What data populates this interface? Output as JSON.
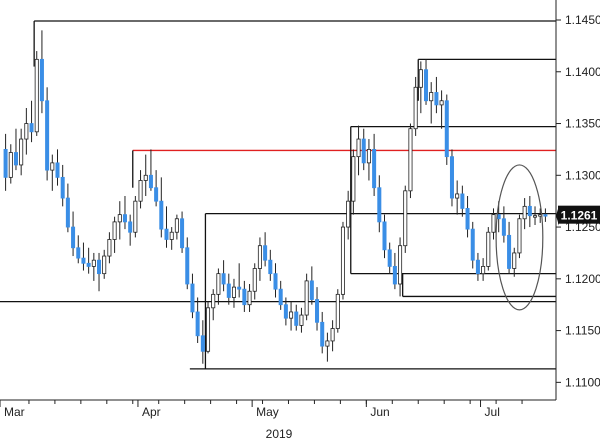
{
  "chart_data": {
    "type": "candlestick",
    "instrument_note": "",
    "y_axis": {
      "ticks": [
        "1.1450",
        "1.1400",
        "1.1350",
        "1.1300",
        "1.1250",
        "1.1200",
        "1.1150",
        "1.1100"
      ],
      "tick_values": [
        1.145,
        1.14,
        1.135,
        1.13,
        1.125,
        1.12,
        1.115,
        1.11
      ],
      "range": [
        1.1075,
        1.1485
      ],
      "position": "right"
    },
    "x_axis": {
      "month_labels": [
        "Mar",
        "Apr",
        "May",
        "Jun",
        "Jul"
      ],
      "month_start_index": [
        0,
        26,
        48,
        70,
        92
      ],
      "year_label": "2019",
      "num_bars": 105
    },
    "current_price": "1.1261",
    "current_price_value": 1.1261,
    "colors": {
      "up": "#ffffff",
      "down": "#3a8ee6",
      "wick": "#222222",
      "level": "#111111",
      "resistance": "#e02020",
      "price_box": "#111111"
    },
    "horizontal_levels": [
      {
        "value": 1.1449,
        "start_index": 6,
        "end_index": 104,
        "color": "#111111"
      },
      {
        "value": 1.1412,
        "start_index": 80,
        "end_index": 104,
        "color": "#111111"
      },
      {
        "value": 1.1347,
        "start_index": 67,
        "end_index": 104,
        "color": "#111111"
      },
      {
        "value": 1.1324,
        "start_index": 25,
        "end_index": 104,
        "color": "#e02020"
      },
      {
        "value": 1.1263,
        "start_index": 39,
        "end_index": 104,
        "color": "#111111"
      },
      {
        "value": 1.1205,
        "start_index": 67,
        "end_index": 104,
        "color": "#111111"
      },
      {
        "value": 1.1183,
        "start_index": 77,
        "end_index": 104,
        "color": "#111111"
      },
      {
        "value": 1.1178,
        "start_index": 0,
        "end_index": 104,
        "color": "#111111"
      },
      {
        "value": 1.1113,
        "start_index": 36,
        "end_index": 104,
        "color": "#111111"
      }
    ],
    "annotation": {
      "type": "ellipse",
      "center_index": 99,
      "center_value": 1.124,
      "half_width_bars": 4.5,
      "half_height_value": 0.007
    },
    "ohlc": [
      [
        1.1325,
        1.134,
        1.1285,
        1.1298
      ],
      [
        1.1298,
        1.133,
        1.1292,
        1.1322
      ],
      [
        1.1322,
        1.1345,
        1.1305,
        1.131
      ],
      [
        1.131,
        1.1345,
        1.13,
        1.1335
      ],
      [
        1.1335,
        1.1365,
        1.132,
        1.135
      ],
      [
        1.135,
        1.1372,
        1.1332,
        1.1342
      ],
      [
        1.1342,
        1.142,
        1.1338,
        1.1412
      ],
      [
        1.1412,
        1.144,
        1.136,
        1.1372
      ],
      [
        1.1372,
        1.1385,
        1.1295,
        1.1305
      ],
      [
        1.1305,
        1.132,
        1.1285,
        1.1312
      ],
      [
        1.1312,
        1.1325,
        1.129,
        1.1298
      ],
      [
        1.1298,
        1.131,
        1.127,
        1.1278
      ],
      [
        1.1278,
        1.1292,
        1.1245,
        1.125
      ],
      [
        1.125,
        1.1265,
        1.1222,
        1.123
      ],
      [
        1.123,
        1.1242,
        1.1215,
        1.122
      ],
      [
        1.122,
        1.1235,
        1.1208,
        1.1215
      ],
      [
        1.1215,
        1.123,
        1.1205,
        1.1212
      ],
      [
        1.1212,
        1.1225,
        1.1198,
        1.1218
      ],
      [
        1.1218,
        1.1225,
        1.1188,
        1.1205
      ],
      [
        1.1205,
        1.1228,
        1.12,
        1.1222
      ],
      [
        1.1222,
        1.1245,
        1.1215,
        1.1238
      ],
      [
        1.1238,
        1.126,
        1.1225,
        1.1255
      ],
      [
        1.1255,
        1.1275,
        1.1238,
        1.1262
      ],
      [
        1.1262,
        1.128,
        1.1248,
        1.1255
      ],
      [
        1.1255,
        1.1262,
        1.1232,
        1.1245
      ],
      [
        1.1245,
        1.128,
        1.124,
        1.1275
      ],
      [
        1.1275,
        1.1305,
        1.1268,
        1.1295
      ],
      [
        1.1295,
        1.132,
        1.128,
        1.13
      ],
      [
        1.13,
        1.1325,
        1.1285,
        1.1288
      ],
      [
        1.1288,
        1.1305,
        1.127,
        1.1275
      ],
      [
        1.1275,
        1.1298,
        1.124,
        1.1248
      ],
      [
        1.1248,
        1.127,
        1.123,
        1.1238
      ],
      [
        1.1238,
        1.125,
        1.1228,
        1.1245
      ],
      [
        1.1245,
        1.1262,
        1.1238,
        1.1258
      ],
      [
        1.1258,
        1.1265,
        1.1225,
        1.123
      ],
      [
        1.123,
        1.124,
        1.119,
        1.1195
      ],
      [
        1.1195,
        1.1205,
        1.1162,
        1.1168
      ],
      [
        1.1168,
        1.1182,
        1.1138,
        1.1145
      ],
      [
        1.1145,
        1.116,
        1.1118,
        1.113
      ],
      [
        1.113,
        1.1178,
        1.1128,
        1.1172
      ],
      [
        1.1172,
        1.119,
        1.116,
        1.1185
      ],
      [
        1.1185,
        1.121,
        1.1175,
        1.1205
      ],
      [
        1.1205,
        1.1218,
        1.1188,
        1.1195
      ],
      [
        1.1195,
        1.1205,
        1.1175,
        1.1182
      ],
      [
        1.1182,
        1.12,
        1.1172,
        1.1192
      ],
      [
        1.1192,
        1.1215,
        1.1182,
        1.119
      ],
      [
        1.119,
        1.1198,
        1.1168,
        1.1175
      ],
      [
        1.1175,
        1.1195,
        1.1168,
        1.1188
      ],
      [
        1.1188,
        1.1215,
        1.118,
        1.121
      ],
      [
        1.121,
        1.124,
        1.1198,
        1.1232
      ],
      [
        1.1232,
        1.1245,
        1.1212,
        1.1218
      ],
      [
        1.1218,
        1.1228,
        1.1198,
        1.1205
      ],
      [
        1.1205,
        1.1215,
        1.1182,
        1.119
      ],
      [
        1.119,
        1.1198,
        1.117,
        1.1175
      ],
      [
        1.1175,
        1.1182,
        1.1155,
        1.1162
      ],
      [
        1.1162,
        1.1178,
        1.115,
        1.1168
      ],
      [
        1.1168,
        1.1175,
        1.115,
        1.1155
      ],
      [
        1.1155,
        1.1172,
        1.1148,
        1.1165
      ],
      [
        1.1165,
        1.1205,
        1.116,
        1.1198
      ],
      [
        1.1198,
        1.1212,
        1.1175,
        1.118
      ],
      [
        1.118,
        1.1192,
        1.115,
        1.1158
      ],
      [
        1.1158,
        1.1168,
        1.1128,
        1.1135
      ],
      [
        1.1135,
        1.1148,
        1.112,
        1.114
      ],
      [
        1.114,
        1.116,
        1.113,
        1.1152
      ],
      [
        1.1152,
        1.119,
        1.1148,
        1.1185
      ],
      [
        1.1185,
        1.1255,
        1.118,
        1.125
      ],
      [
        1.125,
        1.1285,
        1.1238,
        1.1275
      ],
      [
        1.1275,
        1.1325,
        1.1262,
        1.1318
      ],
      [
        1.1318,
        1.1348,
        1.13,
        1.1335
      ],
      [
        1.1335,
        1.1345,
        1.1305,
        1.1312
      ],
      [
        1.1312,
        1.1335,
        1.1295,
        1.1325
      ],
      [
        1.1325,
        1.134,
        1.128,
        1.1288
      ],
      [
        1.1288,
        1.13,
        1.1245,
        1.1255
      ],
      [
        1.1255,
        1.1262,
        1.122,
        1.1228
      ],
      [
        1.1228,
        1.1235,
        1.1205,
        1.1212
      ],
      [
        1.1212,
        1.1225,
        1.119,
        1.1195
      ],
      [
        1.1195,
        1.124,
        1.1183,
        1.1232
      ],
      [
        1.1232,
        1.129,
        1.1225,
        1.1285
      ],
      [
        1.1285,
        1.135,
        1.1278,
        1.1345
      ],
      [
        1.1345,
        1.1395,
        1.1338,
        1.1385
      ],
      [
        1.1385,
        1.141,
        1.136,
        1.1402
      ],
      [
        1.1402,
        1.1412,
        1.1368,
        1.1372
      ],
      [
        1.1372,
        1.139,
        1.135,
        1.138
      ],
      [
        1.138,
        1.1395,
        1.136,
        1.1368
      ],
      [
        1.1368,
        1.1382,
        1.1345,
        1.1372
      ],
      [
        1.1372,
        1.1378,
        1.131,
        1.1318
      ],
      [
        1.1318,
        1.1325,
        1.127,
        1.1278
      ],
      [
        1.1278,
        1.1295,
        1.1262,
        1.1282
      ],
      [
        1.1282,
        1.129,
        1.126,
        1.1268
      ],
      [
        1.1268,
        1.128,
        1.124,
        1.1248
      ],
      [
        1.1248,
        1.1255,
        1.121,
        1.1218
      ],
      [
        1.1218,
        1.1225,
        1.1198,
        1.1205
      ],
      [
        1.1205,
        1.122,
        1.1198,
        1.1212
      ],
      [
        1.1212,
        1.125,
        1.1208,
        1.1245
      ],
      [
        1.1245,
        1.1268,
        1.1238,
        1.1262
      ],
      [
        1.1262,
        1.1275,
        1.1245,
        1.1258
      ],
      [
        1.1258,
        1.127,
        1.1235,
        1.1242
      ],
      [
        1.1242,
        1.1255,
        1.1205,
        1.121
      ],
      [
        1.121,
        1.123,
        1.1202,
        1.1225
      ],
      [
        1.1225,
        1.1262,
        1.122,
        1.1258
      ],
      [
        1.1258,
        1.1278,
        1.1248,
        1.127
      ],
      [
        1.127,
        1.128,
        1.125,
        1.1261
      ],
      [
        1.1261,
        1.127,
        1.1252,
        1.1261
      ],
      [
        1.1261,
        1.1268,
        1.1254,
        1.1262
      ],
      [
        1.1262,
        1.1268,
        1.1255,
        1.1261
      ]
    ]
  }
}
